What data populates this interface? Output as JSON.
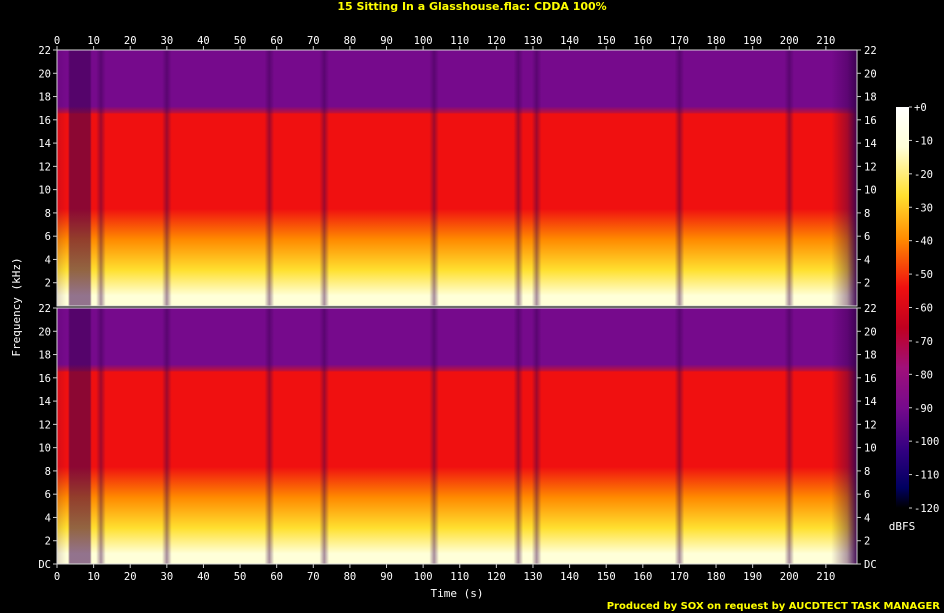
{
  "title": "15 Sitting In a Glasshouse.flac: CDDA 100%",
  "credit": "Produced by SOX on request by AUCDTECT TASK MANAGER",
  "chart_data": {
    "type": "heatmap",
    "subtype": "spectrogram",
    "channels": 2,
    "xlabel": "Time (s)",
    "ylabel": "Frequency (kHz)",
    "xlim": [
      0,
      218.5
    ],
    "ylim": [
      0,
      22
    ],
    "x_ticks": [
      0,
      10,
      20,
      30,
      40,
      50,
      60,
      70,
      80,
      90,
      100,
      110,
      120,
      130,
      140,
      150,
      160,
      170,
      180,
      190,
      200,
      210
    ],
    "y_ticks": [
      {
        "value": 22,
        "label": "22"
      },
      {
        "value": 20,
        "label": "20"
      },
      {
        "value": 18,
        "label": "18"
      },
      {
        "value": 16,
        "label": "16"
      },
      {
        "value": 14,
        "label": "14"
      },
      {
        "value": 12,
        "label": "12"
      },
      {
        "value": 10,
        "label": "10"
      },
      {
        "value": 8,
        "label": "8"
      },
      {
        "value": 6,
        "label": "6"
      },
      {
        "value": 4,
        "label": "4"
      },
      {
        "value": 2,
        "label": "2"
      },
      {
        "value": 0,
        "label": "DC"
      }
    ],
    "colorbar": {
      "label": "dBFS",
      "range": [
        -120,
        0
      ],
      "ticks": [
        "+0",
        "-10",
        "-20",
        "-30",
        "-40",
        "-50",
        "-60",
        "-70",
        "-80",
        "-90",
        "-100",
        "-110",
        "-120"
      ]
    },
    "colors": {
      "purple": "#760a8c",
      "red": "#f01010",
      "orange": "#ff8a00",
      "yellow": "#ffe030",
      "white": "#ffffd8",
      "navy": "#000060"
    },
    "features": {
      "lowpass_cutoff_khz": 16.5,
      "quiet_intro_s": [
        3,
        9
      ],
      "dropouts_s": [
        12,
        30,
        58,
        73,
        103,
        126,
        131,
        170,
        200
      ],
      "track_end_s": 218
    }
  }
}
